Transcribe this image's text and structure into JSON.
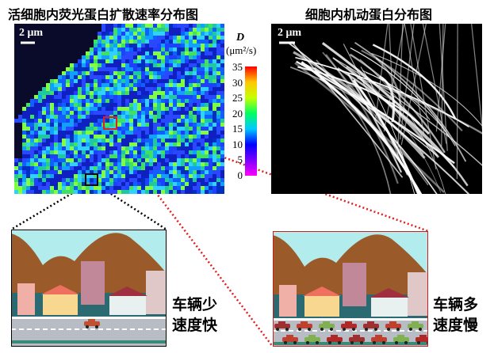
{
  "left_panel": {
    "title": "活细胞内荧光蛋白扩散速率分布图",
    "scale_bar": "2 μm"
  },
  "right_panel": {
    "title": "细胞内机动蛋白分布图",
    "scale_bar": "2 μm"
  },
  "colorbar": {
    "symbol": "D",
    "unit": "(μm²/s)",
    "ticks": [
      "35",
      "30",
      "25",
      "20",
      "15",
      "10",
      "5",
      "0"
    ],
    "range": [
      0,
      35
    ],
    "colors": [
      "#ff00ff",
      "#7a00ff",
      "#0000ff",
      "#00c8ff",
      "#00ff60",
      "#c8ff00",
      "#ffc800",
      "#ff0000"
    ]
  },
  "cartoons": {
    "sparse": {
      "line1": "车辆少",
      "line2": "速度快"
    },
    "dense": {
      "line1": "车辆多",
      "line2": "速度慢"
    }
  },
  "colors": {
    "sky": "#b3ecec",
    "mountain": "#9a5a2a",
    "road": "#b8bcc4",
    "roi_red": "#e02020",
    "roi_black": "#000000"
  }
}
